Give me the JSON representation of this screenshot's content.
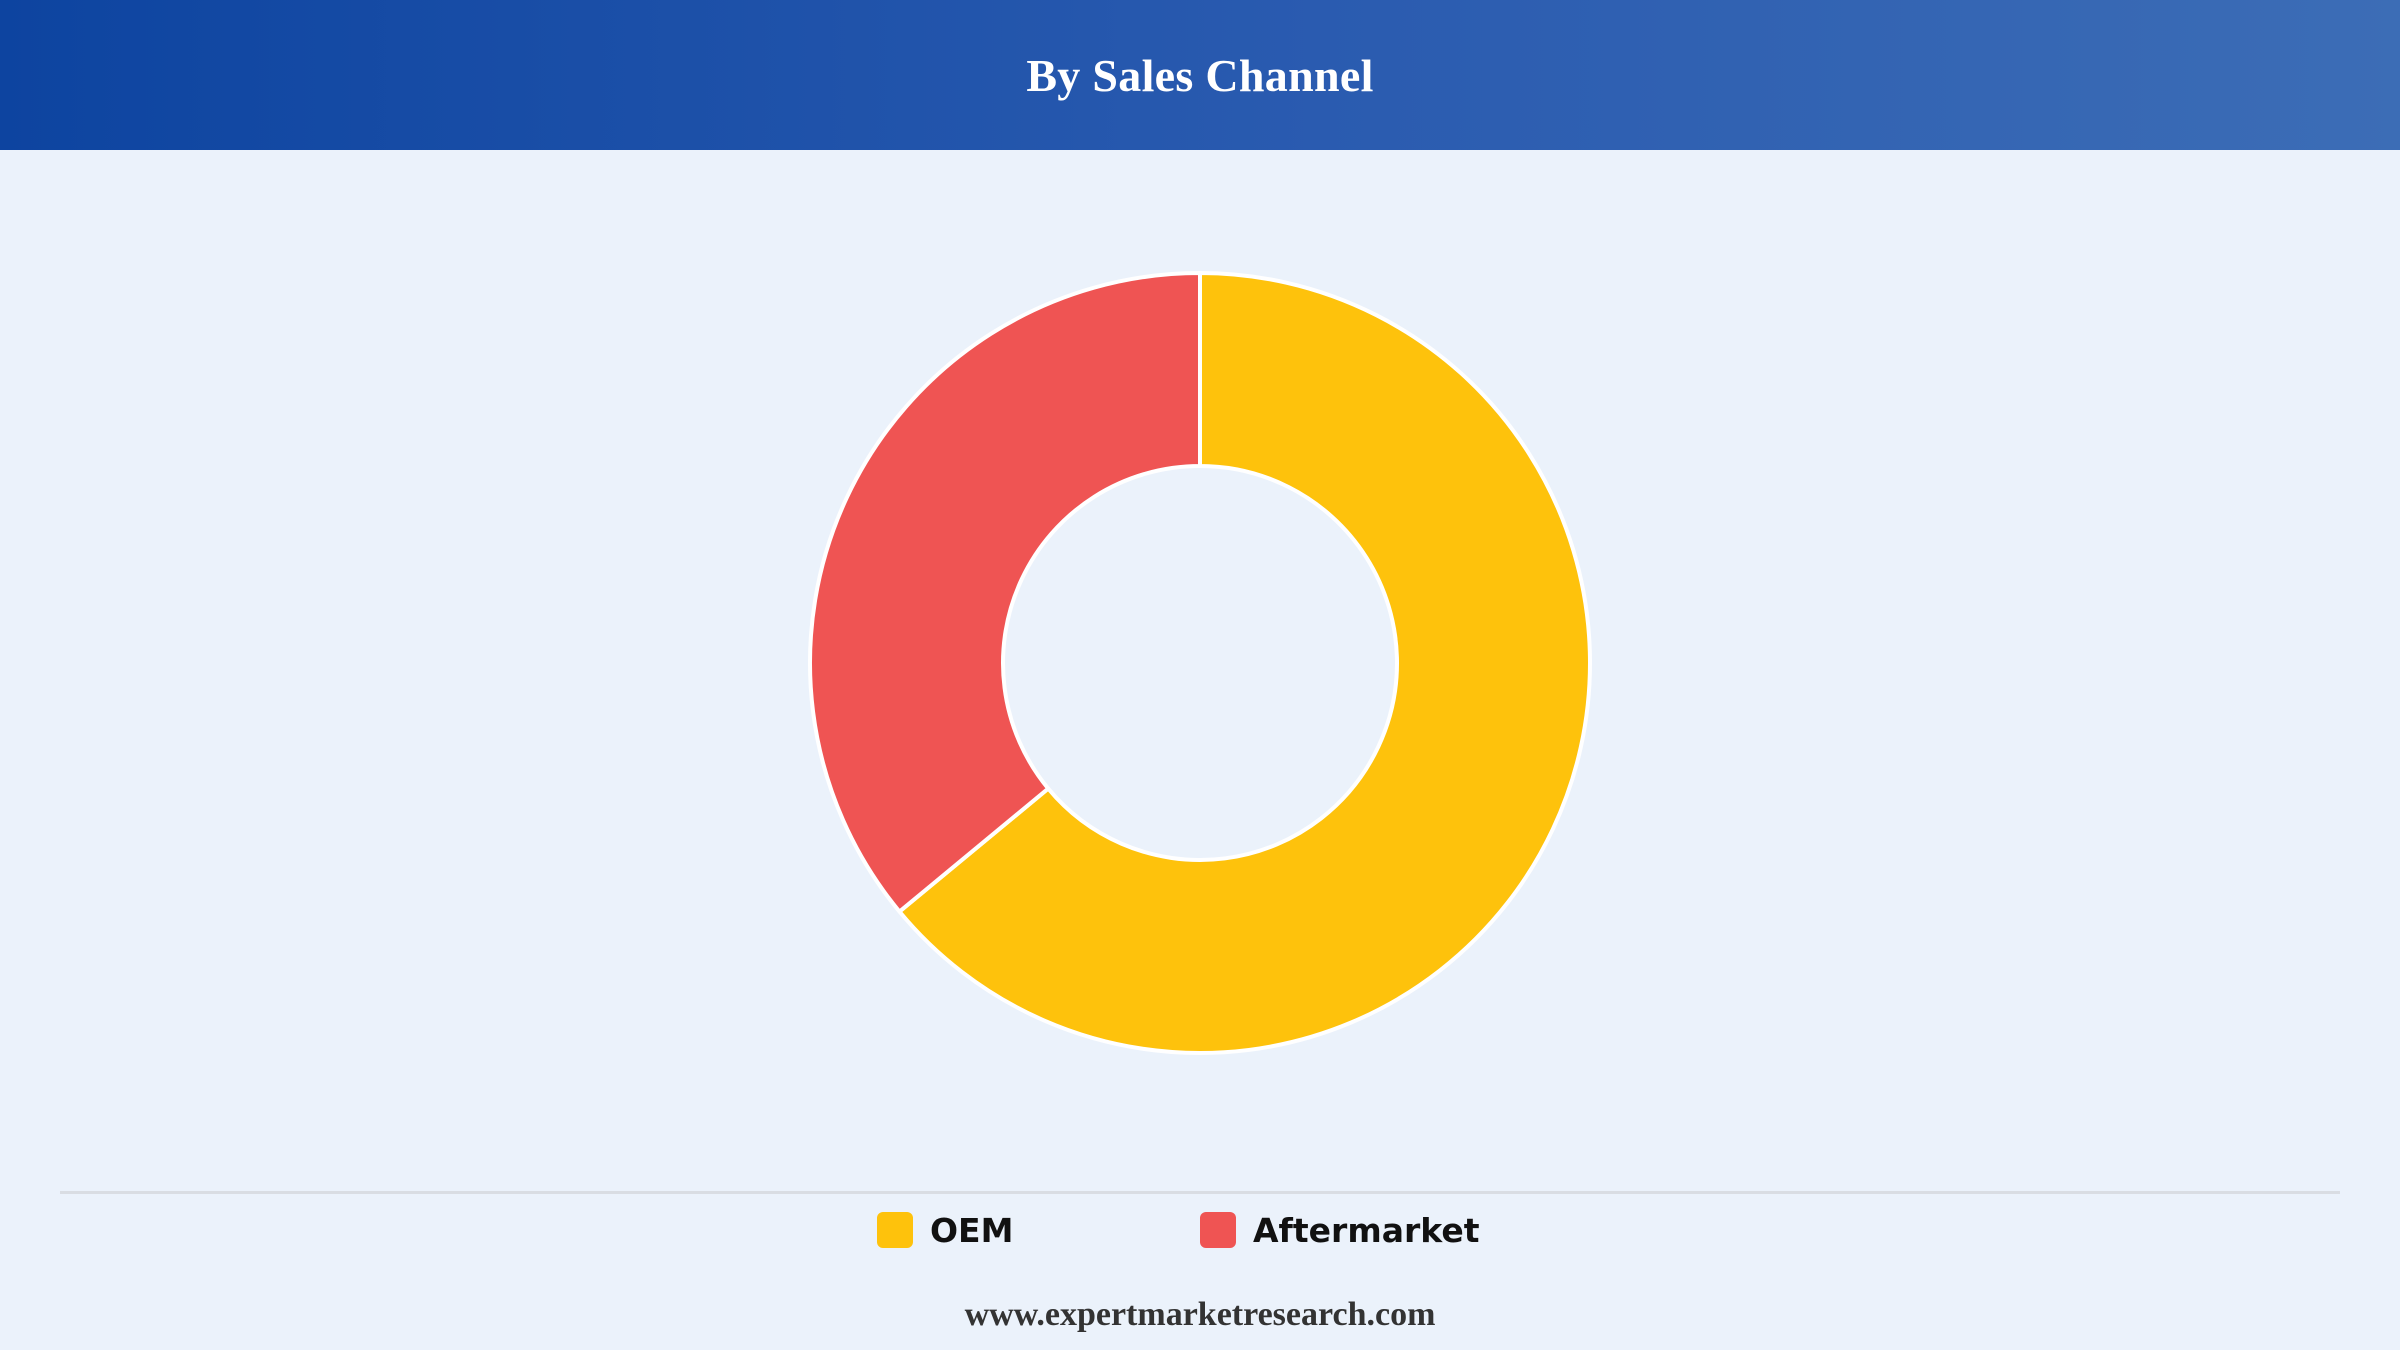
{
  "header": {
    "title": "By Sales Channel"
  },
  "chart_data": {
    "type": "pie",
    "variant": "donut",
    "title": "By Sales Channel",
    "slices": [
      {
        "label": "OEM",
        "value": 64,
        "color": "#fec20c"
      },
      {
        "label": "Aftermarket",
        "value": 36,
        "color": "#ef5453"
      }
    ],
    "legend_position": "bottom"
  },
  "legend": {
    "items": [
      {
        "label": "OEM",
        "color": "#fec20c"
      },
      {
        "label": "Aftermarket",
        "color": "#ef5453"
      }
    ]
  },
  "footer": {
    "website": "www.expertmarketresearch.com"
  }
}
